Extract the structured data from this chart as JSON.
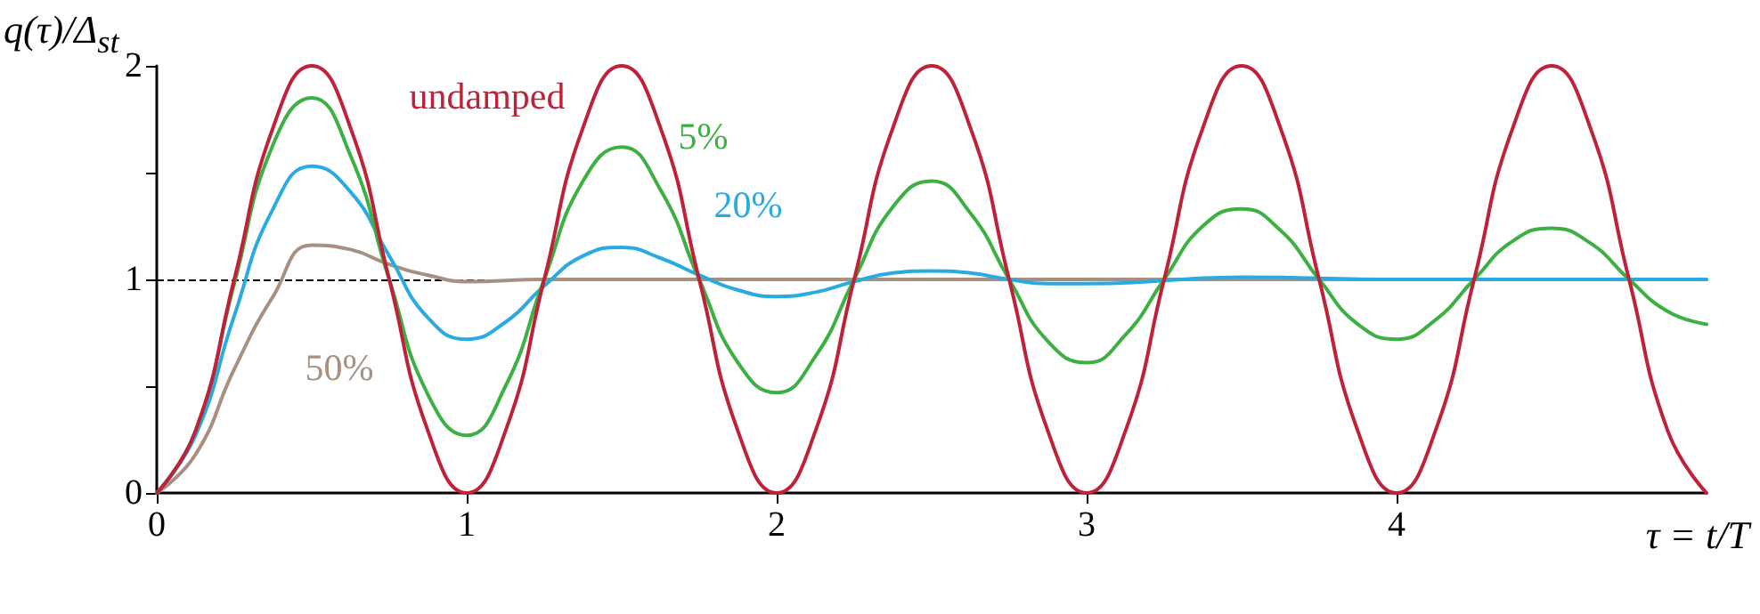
{
  "chart_data": {
    "type": "line",
    "ylabel": "q(τ)/Δ$_{st}$",
    "xlabel": "τ = t/T",
    "xlim": [
      0,
      5
    ],
    "xticks": [
      0,
      1,
      2,
      3,
      4
    ],
    "ylim": [
      0,
      2
    ],
    "yticks": [
      0,
      {
        "value": 0.5,
        "label": null
      },
      1,
      {
        "value": 1.5,
        "label": null
      },
      2
    ],
    "grid": false,
    "legend": false,
    "marker": "none",
    "line_style": "solid",
    "ref_lines": [
      {
        "axis": "y",
        "value": 1,
        "color": "#000000",
        "line_style": "dashed"
      }
    ],
    "series": [
      {
        "name": "undamped",
        "color": "#c0213a",
        "x": [
          0,
          0.125,
          0.25,
          0.375,
          0.5,
          0.625,
          0.75,
          0.875,
          1,
          1.125,
          1.25,
          1.375,
          1.5,
          1.625,
          1.75,
          1.875,
          2,
          2.125,
          2.25,
          2.375,
          2.5,
          2.625,
          2.75,
          2.875,
          3,
          3.125,
          3.25,
          3.375,
          3.5,
          3.625,
          3.75,
          3.875,
          4,
          4.125,
          4.25,
          4.375,
          4.5,
          4.625,
          4.75,
          4.875,
          5
        ],
        "values": [
          0,
          0.29,
          1,
          1.71,
          2,
          1.71,
          1,
          0.29,
          0,
          0.29,
          1,
          1.71,
          2,
          1.71,
          1,
          0.29,
          0,
          0.29,
          1,
          1.71,
          2,
          1.71,
          1,
          0.29,
          0,
          0.29,
          1,
          1.71,
          2,
          1.71,
          1,
          0.29,
          0,
          0.29,
          1,
          1.71,
          2,
          1.71,
          1,
          0.29,
          0
        ]
      },
      {
        "name": "5%",
        "color": "#3cb043",
        "x": [
          0,
          0.125,
          0.25,
          0.375,
          0.5,
          0.625,
          0.75,
          0.875,
          1,
          1.125,
          1.25,
          1.375,
          1.5,
          1.625,
          1.75,
          1.875,
          2,
          2.125,
          2.25,
          2.375,
          2.5,
          2.625,
          2.75,
          2.875,
          3,
          3.125,
          3.25,
          3.375,
          3.5,
          3.625,
          3.75,
          3.875,
          4,
          4.125,
          4.25,
          4.375,
          4.5,
          4.625,
          4.75,
          4.875,
          5
        ],
        "values": [
          0,
          0.29,
          0.98,
          1.63,
          1.85,
          1.58,
          1,
          0.46,
          0.27,
          0.5,
          1,
          1.46,
          1.62,
          1.42,
          1,
          0.61,
          0.47,
          0.64,
          1,
          1.34,
          1.46,
          1.31,
          1,
          0.71,
          0.61,
          0.74,
          1,
          1.25,
          1.33,
          1.23,
          1,
          0.79,
          0.72,
          0.81,
          1,
          1.18,
          1.24,
          1.17,
          1,
          0.85,
          0.79
        ]
      },
      {
        "name": "20%",
        "color": "#29abe2",
        "x": [
          0,
          0.125,
          0.25,
          0.375,
          0.5,
          0.625,
          0.75,
          0.875,
          1,
          1.125,
          1.25,
          1.375,
          1.5,
          1.625,
          1.75,
          1.875,
          2,
          2.125,
          2.25,
          2.375,
          2.5,
          2.625,
          2.75,
          2.875,
          3,
          3.5,
          4,
          4.5,
          5
        ],
        "values": [
          0,
          0.27,
          0.83,
          1.33,
          1.53,
          1.41,
          1.11,
          0.82,
          0.72,
          0.8,
          0.97,
          1.11,
          1.15,
          1.1,
          1.02,
          0.95,
          0.92,
          0.94,
          0.99,
          1.03,
          1.04,
          1.03,
          1,
          0.98,
          0.98,
          1.01,
          1,
          1,
          1
        ]
      },
      {
        "name": "50%",
        "color": "#a89080",
        "x": [
          0,
          0.125,
          0.25,
          0.375,
          0.5,
          0.625,
          0.75,
          0.875,
          1,
          1.25,
          1.5,
          2,
          5
        ],
        "values": [
          0,
          0.18,
          0.58,
          0.92,
          1.16,
          1.14,
          1.07,
          1.02,
          0.99,
          1,
          1,
          1,
          1
        ]
      }
    ]
  }
}
